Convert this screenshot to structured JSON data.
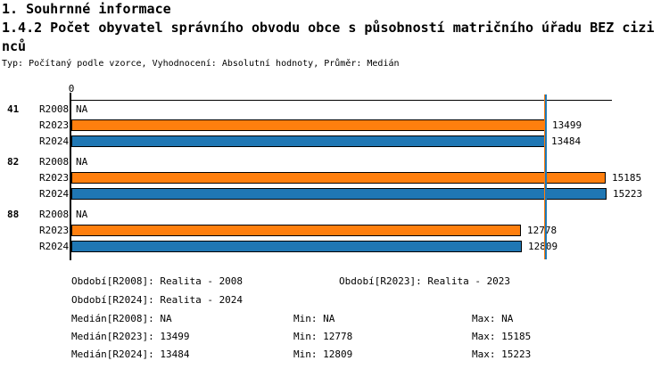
{
  "header": {
    "section": "1. Souhrnné informace",
    "title_line1": "1.4.2 Počet obyvatel správního obvodu obce s působností matričního úřadu BEZ cizi",
    "title_line2": "nců",
    "meta": "Typ: Počítaný podle vzorce, Vyhodnocení: Absolutní hodnoty, Průměr: Medián"
  },
  "chart_data": {
    "type": "bar",
    "orientation": "horizontal",
    "axis_tick_label": "0",
    "xlim": [
      0,
      15223
    ],
    "na_label": "NA",
    "categories": [
      "41",
      "82",
      "88"
    ],
    "series": [
      {
        "name": "R2008",
        "color": null,
        "values": [
          null,
          null,
          null
        ]
      },
      {
        "name": "R2023",
        "color": "#ff7f0e",
        "values": [
          13499,
          15185,
          12778
        ]
      },
      {
        "name": "R2024",
        "color": "#1f77b4",
        "values": [
          13484,
          15223,
          12809
        ]
      }
    ],
    "bar_border_color": "#000000",
    "median_lines": [
      {
        "value": 13499,
        "color": "#ff7f0e"
      },
      {
        "value": 13484,
        "color": "#1f77b4"
      }
    ]
  },
  "legend": {
    "periods": [
      "Období[R2008]: Realita - 2008",
      "Období[R2023]: Realita - 2023",
      "Období[R2024]: Realita - 2024"
    ],
    "stats": [
      {
        "median": "Medián[R2008]: NA",
        "min": "Min: NA",
        "max": "Max: NA"
      },
      {
        "median": "Medián[R2023]: 13499",
        "min": "Min: 12778",
        "max": "Max: 15185"
      },
      {
        "median": "Medián[R2024]: 13484",
        "min": "Min: 12809",
        "max": "Max: 15223"
      }
    ]
  }
}
